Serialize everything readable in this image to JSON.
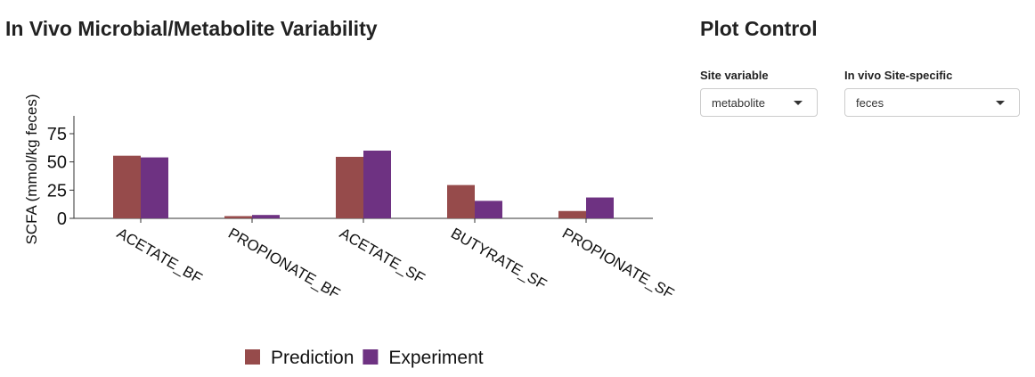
{
  "left_panel": {
    "title": "In Vivo Microbial/Metabolite Variability"
  },
  "right_panel": {
    "title": "Plot Control",
    "controls": [
      {
        "label": "Site variable",
        "value": "metabolite"
      },
      {
        "label": "In vivo Site-specific",
        "value": "feces"
      }
    ]
  },
  "colors": {
    "prediction": "#964B4B",
    "experiment": "#6E3282"
  },
  "chart_data": {
    "type": "bar",
    "title": "",
    "xlabel": "",
    "ylabel": "SCFA (mmol/kg feces)",
    "categories": [
      "ACETATE_BF",
      "PROPIONATE_BF",
      "ACETATE_SF",
      "BUTYRATE_SF",
      "PROPIONATE_SF"
    ],
    "series": [
      {
        "name": "Prediction",
        "color": "#964B4B",
        "values": [
          55.5,
          2.0,
          54.5,
          29.5,
          6.5
        ]
      },
      {
        "name": "Experiment",
        "color": "#6E3282",
        "values": [
          54.0,
          3.0,
          60.0,
          15.5,
          18.5
        ]
      }
    ],
    "y_ticks": [
      0,
      25,
      50,
      75
    ],
    "ylim": [
      0,
      92
    ],
    "legend_position": "bottom",
    "grid": false
  }
}
